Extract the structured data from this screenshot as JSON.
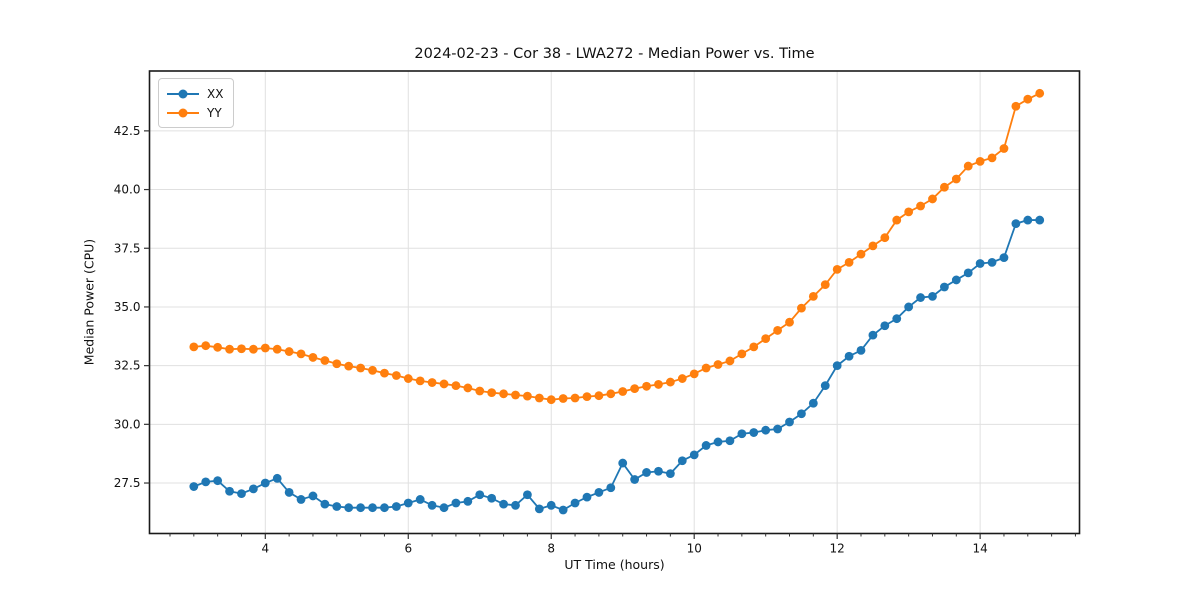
{
  "chart_data": {
    "type": "line",
    "title": "2024-02-23 - Cor 38 - LWA272 - Median Power vs. Time",
    "xlabel": "UT Time (hours)",
    "ylabel": "Median Power (CPU)",
    "xlim": [
      2.38,
      15.39
    ],
    "ylim": [
      25.35,
      45.05
    ],
    "x_ticks": [
      4,
      6,
      8,
      10,
      12,
      14
    ],
    "x_tick_labels": [
      "4",
      "6",
      "8",
      "10",
      "12",
      "14"
    ],
    "x_minor_tick_step": 0.33333,
    "y_ticks": [
      27.5,
      30.0,
      32.5,
      35.0,
      37.5,
      40.0,
      42.5
    ],
    "y_tick_labels": [
      "27.5",
      "30.0",
      "32.5",
      "35.0",
      "37.5",
      "40.0",
      "42.5"
    ],
    "grid": true,
    "legend_position": "upper-left",
    "x_start": 3.0,
    "x_step": 0.166667,
    "series": [
      {
        "name": "XX",
        "color": "#1f77b4",
        "values": [
          27.35,
          27.55,
          27.6,
          27.15,
          27.05,
          27.25,
          27.5,
          27.7,
          27.1,
          26.8,
          26.95,
          26.6,
          26.5,
          26.45,
          26.45,
          26.45,
          26.45,
          26.5,
          26.65,
          26.8,
          26.55,
          26.45,
          26.65,
          26.72,
          27.0,
          26.85,
          26.6,
          26.55,
          27.0,
          26.4,
          26.55,
          26.35,
          26.65,
          26.9,
          27.1,
          27.3,
          28.35,
          27.65,
          27.95,
          28.0,
          27.9,
          28.45,
          28.7,
          29.1,
          29.25,
          29.3,
          29.6,
          29.65,
          29.75,
          29.8,
          30.1,
          30.45,
          30.9,
          31.65,
          32.5,
          32.9,
          33.15,
          33.8,
          34.2,
          34.5,
          35.0,
          35.4,
          35.45,
          35.85,
          36.15,
          36.45,
          36.85,
          36.9,
          37.1,
          38.55,
          38.7,
          38.7
        ]
      },
      {
        "name": "YY",
        "color": "#ff7f0e",
        "values": [
          33.3,
          33.35,
          33.28,
          33.2,
          33.22,
          33.2,
          33.25,
          33.2,
          33.1,
          33.0,
          32.85,
          32.72,
          32.58,
          32.48,
          32.4,
          32.3,
          32.18,
          32.08,
          31.95,
          31.85,
          31.78,
          31.72,
          31.65,
          31.55,
          31.42,
          31.35,
          31.3,
          31.25,
          31.2,
          31.12,
          31.05,
          31.1,
          31.12,
          31.18,
          31.22,
          31.3,
          31.4,
          31.52,
          31.62,
          31.7,
          31.8,
          31.95,
          32.15,
          32.4,
          32.55,
          32.7,
          33.0,
          33.3,
          33.65,
          34.0,
          34.35,
          34.95,
          35.45,
          35.95,
          36.6,
          36.9,
          37.25,
          37.6,
          37.95,
          38.7,
          39.05,
          39.3,
          39.6,
          40.1,
          40.45,
          41.0,
          41.2,
          41.35,
          41.75,
          43.55,
          43.85,
          44.1
        ]
      }
    ]
  },
  "style": {
    "grid_color": "#e0e0e0",
    "spine_color": "#1a1a1a",
    "tick_color": "#333333",
    "background": "#ffffff"
  }
}
